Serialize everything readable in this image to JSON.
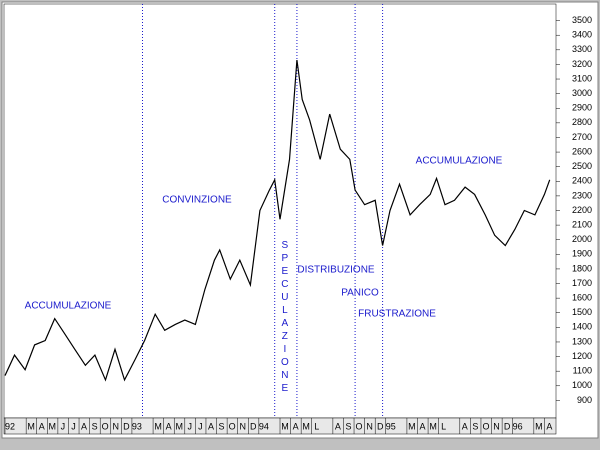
{
  "chart_data": {
    "type": "line",
    "annotations": [
      "ACCUMULAZIONE",
      "CONVINZIONE",
      "SPECULAZIONE",
      "DISTRIBUZIONE",
      "PANICO",
      "FRUSTRAZIONE",
      "ACCUMULAZIONE"
    ],
    "vlines": [
      13,
      25.5,
      27.6,
      33.1,
      35.7
    ],
    "x": [
      0,
      0.9,
      1.9,
      2.8,
      3.8,
      4.7,
      5.7,
      6.6,
      7.6,
      8.5,
      9.5,
      10.4,
      11.3,
      12.3,
      13.2,
      14.2,
      15.1,
      16.1,
      17,
      18,
      18.9,
      19.8,
      20.3,
      21.3,
      22.2,
      23.2,
      24.1,
      25,
      25.5,
      26,
      26.9,
      27.6,
      28.1,
      28.8,
      29.8,
      30.7,
      31.7,
      32.6,
      33.1,
      34,
      35,
      35.7,
      36.4,
      37.3,
      38.3,
      39.2,
      40.2,
      40.8,
      41.6,
      42.5,
      43.5,
      44.4,
      45.4,
      46.3,
      47.3,
      48.2,
      49.1,
      50.1,
      51,
      51.5
    ],
    "series": [
      {
        "color": "#000000",
        "values": [
          1070,
          1210,
          1110,
          1280,
          1310,
          1460,
          1350,
          1250,
          1140,
          1210,
          1040,
          1250,
          1040,
          1180,
          1310,
          1490,
          1380,
          1420,
          1450,
          1420,
          1660,
          1860,
          1930,
          1730,
          1860,
          1690,
          2200,
          2340,
          2410,
          2140,
          2550,
          3230,
          2960,
          2820,
          2550,
          2860,
          2620,
          2550,
          2340,
          2240,
          2270,
          1960,
          2200,
          2380,
          2170,
          2240,
          2310,
          2420,
          2240,
          2270,
          2360,
          2310,
          2170,
          2030,
          1960,
          2070,
          2200,
          2170,
          2310,
          2410
        ]
      }
    ],
    "xlim": [
      0,
      52
    ],
    "xticks": [
      {
        "value": 0,
        "label": "92"
      },
      {
        "value": 2,
        "label": "M"
      },
      {
        "value": 3,
        "label": "A"
      },
      {
        "value": 4,
        "label": "M"
      },
      {
        "value": 5,
        "label": "J"
      },
      {
        "value": 6,
        "label": "J"
      },
      {
        "value": 7,
        "label": "A"
      },
      {
        "value": 8,
        "label": "S"
      },
      {
        "value": 9,
        "label": "O"
      },
      {
        "value": 10,
        "label": "N"
      },
      {
        "value": 11,
        "label": "D"
      },
      {
        "value": 12,
        "label": "93"
      },
      {
        "value": 14,
        "label": "M"
      },
      {
        "value": 15,
        "label": "A"
      },
      {
        "value": 16,
        "label": "M"
      },
      {
        "value": 17,
        "label": "J"
      },
      {
        "value": 18,
        "label": "J"
      },
      {
        "value": 19,
        "label": "A"
      },
      {
        "value": 20,
        "label": "S"
      },
      {
        "value": 21,
        "label": "O"
      },
      {
        "value": 22,
        "label": "N"
      },
      {
        "value": 23,
        "label": "D"
      },
      {
        "value": 24,
        "label": "94"
      },
      {
        "value": 26,
        "label": "M"
      },
      {
        "value": 27,
        "label": "A"
      },
      {
        "value": 28,
        "label": "M"
      },
      {
        "value": 29,
        "label": "L"
      },
      {
        "value": 31,
        "label": "A"
      },
      {
        "value": 32,
        "label": "S"
      },
      {
        "value": 33,
        "label": "O"
      },
      {
        "value": 34,
        "label": "N"
      },
      {
        "value": 35,
        "label": "D"
      },
      {
        "value": 36,
        "label": "95"
      },
      {
        "value": 38,
        "label": "M"
      },
      {
        "value": 39,
        "label": "A"
      },
      {
        "value": 40,
        "label": "M"
      },
      {
        "value": 41,
        "label": "L"
      },
      {
        "value": 43,
        "label": "A"
      },
      {
        "value": 44,
        "label": "S"
      },
      {
        "value": 45,
        "label": "O"
      },
      {
        "value": 46,
        "label": "N"
      },
      {
        "value": 47,
        "label": "D"
      },
      {
        "value": 48,
        "label": "96"
      },
      {
        "value": 50,
        "label": "M"
      },
      {
        "value": 51,
        "label": "A"
      }
    ],
    "ylim": [
      800,
      3600
    ],
    "yticks": [
      900,
      1000,
      1100,
      1200,
      1300,
      1400,
      1500,
      1600,
      1700,
      1800,
      1900,
      2000,
      2100,
      2200,
      2300,
      2400,
      2500,
      2600,
      2700,
      2800,
      2900,
      3000,
      3100,
      3200,
      3300,
      3400,
      3500
    ]
  }
}
